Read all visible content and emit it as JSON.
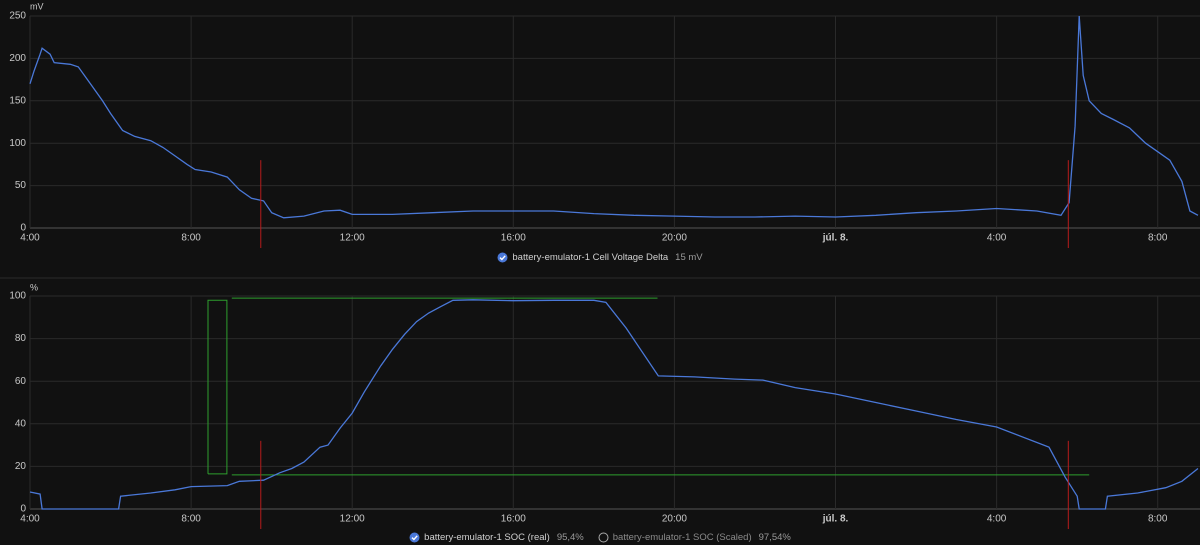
{
  "chart_data": [
    {
      "type": "line",
      "y_unit": "mV",
      "grid": true,
      "xlim": [
        4,
        33.05
      ],
      "xticks": [
        {
          "value": 4,
          "label": "4:00"
        },
        {
          "value": 8,
          "label": "8:00"
        },
        {
          "value": 12,
          "label": "12:00"
        },
        {
          "value": 16,
          "label": "16:00"
        },
        {
          "value": 20,
          "label": "20:00"
        },
        {
          "value": 24,
          "label": "júl. 8."
        },
        {
          "value": 28,
          "label": "4:00"
        },
        {
          "value": 32,
          "label": "8:00"
        }
      ],
      "ylim": [
        0,
        250
      ],
      "yticks": [
        0,
        50,
        100,
        150,
        200,
        250
      ],
      "vlines": [
        {
          "x": 9.73,
          "color": "#b71c1c"
        },
        {
          "x": 29.78,
          "color": "#b71c1c"
        }
      ],
      "series": [
        {
          "name": "battery-emulator-1 Cell Voltage Delta",
          "value_label": "15 mV",
          "visible": true,
          "color": "#4a78d8",
          "x": [
            4.0,
            4.1,
            4.25,
            4.3,
            4.5,
            4.6,
            5.0,
            5.2,
            5.5,
            5.8,
            6.0,
            6.3,
            6.6,
            7.0,
            7.3,
            7.6,
            7.9,
            8.1,
            8.5,
            8.9,
            9.2,
            9.5,
            9.8,
            10.0,
            10.3,
            10.8,
            11.3,
            11.7,
            12.0,
            13,
            14,
            15,
            16,
            17,
            18,
            19,
            20,
            21,
            22,
            23,
            24,
            25,
            26,
            27,
            28,
            29,
            29.6,
            29.8,
            29.95,
            30.05,
            30.15,
            30.3,
            30.6,
            30.9,
            31.3,
            31.7,
            32.0,
            32.3,
            32.6,
            32.8,
            33.0
          ],
          "values": [
            170,
            185,
            205,
            212,
            205,
            195,
            193,
            190,
            170,
            150,
            135,
            115,
            108,
            103,
            95,
            85,
            75,
            69,
            66,
            60,
            45,
            35,
            32,
            18,
            12,
            14,
            20,
            21,
            16,
            16,
            18,
            20,
            20,
            20,
            17,
            15,
            14,
            13,
            13,
            14,
            13,
            15,
            18,
            20,
            23,
            20,
            15,
            30,
            120,
            250,
            180,
            150,
            135,
            128,
            118,
            100,
            90,
            80,
            55,
            20,
            15
          ]
        }
      ]
    },
    {
      "type": "line",
      "y_unit": "%",
      "grid": true,
      "xlim": [
        4,
        33.05
      ],
      "xticks": [
        {
          "value": 4,
          "label": "4:00"
        },
        {
          "value": 8,
          "label": "8:00"
        },
        {
          "value": 12,
          "label": "12:00"
        },
        {
          "value": 16,
          "label": "16:00"
        },
        {
          "value": 20,
          "label": "20:00"
        },
        {
          "value": 24,
          "label": "júl. 8."
        },
        {
          "value": 28,
          "label": "4:00"
        },
        {
          "value": 32,
          "label": "8:00"
        }
      ],
      "ylim": [
        0,
        100
      ],
      "yticks": [
        0,
        20,
        40,
        60,
        80,
        100
      ],
      "vlines": [
        {
          "x": 9.73,
          "color": "#b71c1c"
        },
        {
          "x": 29.78,
          "color": "#b71c1c"
        }
      ],
      "overlays": [
        {
          "color": "#2e9e2e",
          "x": [
            8.42,
            8.42,
            8.89,
            8.89,
            8.42,
            null,
            9.01,
            19.58,
            null,
            9.01,
            30.3
          ],
          "values": [
            16.5,
            98,
            98,
            16.5,
            16.5,
            null,
            99,
            99,
            null,
            16,
            16
          ]
        }
      ],
      "series": [
        {
          "name": "battery-emulator-1 SOC (real)",
          "value_label": "95,4%",
          "visible": true,
          "color": "#4a78d8",
          "x": [
            4.0,
            4.25,
            4.3,
            6.2,
            6.25,
            7,
            7.6,
            8,
            8.9,
            9.2,
            9.8,
            10.2,
            10.5,
            10.8,
            11.2,
            11.4,
            11.7,
            12.0,
            12.3,
            12.7,
            13.0,
            13.3,
            13.6,
            13.9,
            14.2,
            14.5,
            15,
            16,
            17,
            18,
            18.3,
            18.8,
            19.6,
            20.5,
            21.5,
            22.2,
            23,
            24,
            25,
            26,
            27,
            28,
            29.3,
            29.7,
            30.0,
            30.05,
            30.7,
            30.75,
            31.5,
            32.2,
            32.6,
            33.0
          ],
          "values": [
            8,
            7,
            0,
            0,
            6,
            7.5,
            9,
            10.5,
            11,
            13,
            13.5,
            17,
            19,
            22,
            29,
            30,
            38,
            45,
            55,
            67,
            75,
            82,
            88,
            92,
            95,
            98,
            98.2,
            97.8,
            98,
            98,
            97,
            85,
            62.5,
            62,
            61,
            60.5,
            57,
            54,
            50,
            46,
            42,
            38.5,
            29,
            15,
            6,
            0,
            0,
            6,
            7.5,
            10,
            13,
            19
          ]
        },
        {
          "name": "battery-emulator-1 SOC (Scaled)",
          "value_label": "97,54%",
          "visible": false,
          "color": "#4a78d8"
        }
      ]
    }
  ]
}
